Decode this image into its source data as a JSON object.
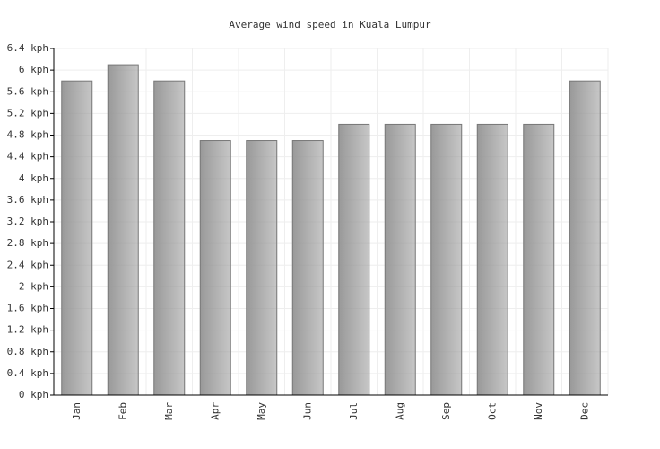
{
  "chart_data": {
    "type": "bar",
    "title": "Average wind speed in Kuala Lumpur",
    "categories": [
      "Jan",
      "Feb",
      "Mar",
      "Apr",
      "May",
      "Jun",
      "Jul",
      "Aug",
      "Sep",
      "Oct",
      "Nov",
      "Dec"
    ],
    "values": [
      5.8,
      6.1,
      5.8,
      4.7,
      4.7,
      4.7,
      5.0,
      5.0,
      5.0,
      5.0,
      5.0,
      5.8
    ],
    "color": "#999999",
    "ylim": [
      0,
      6.4
    ],
    "yticks": [
      {
        "value": 0,
        "label": "0 kph"
      },
      {
        "value": 0.4,
        "label": "0.4 kph"
      },
      {
        "value": 0.8,
        "label": "0.8 kph"
      },
      {
        "value": 1.2,
        "label": "1.2 kph"
      },
      {
        "value": 1.6,
        "label": "1.6 kph"
      },
      {
        "value": 2,
        "label": "2 kph"
      },
      {
        "value": 2.4,
        "label": "2.4 kph"
      },
      {
        "value": 2.8,
        "label": "2.8 kph"
      },
      {
        "value": 3.2,
        "label": "3.2 kph"
      },
      {
        "value": 3.6,
        "label": "3.6 kph"
      },
      {
        "value": 4,
        "label": "4 kph"
      },
      {
        "value": 4.4,
        "label": "4.4 kph"
      },
      {
        "value": 4.8,
        "label": "4.8 kph"
      },
      {
        "value": 5.2,
        "label": "5.2 kph"
      },
      {
        "value": 5.6,
        "label": "5.6 kph"
      },
      {
        "value": 6,
        "label": "6 kph"
      },
      {
        "value": 6.4,
        "label": "6.4 kph"
      }
    ],
    "grid": true
  }
}
